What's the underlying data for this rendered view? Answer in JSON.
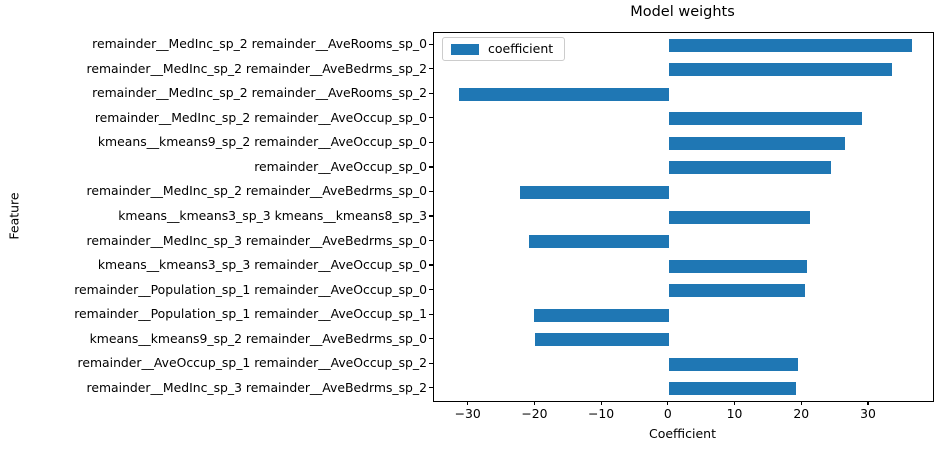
{
  "colors": {
    "bar": "#1f77b4",
    "spine": "#000000",
    "legend_border": "#cccccc",
    "background": "#ffffff"
  },
  "chart_data": {
    "type": "bar",
    "orientation": "horizontal",
    "title": "Model weights",
    "xlabel": "Coefficient",
    "ylabel": "Feature",
    "legend": [
      "coefficient"
    ],
    "legend_position": "upper left",
    "grid": false,
    "xlim": [
      -35.2,
      39.6
    ],
    "xticks": [
      -30,
      -20,
      -10,
      0,
      10,
      20,
      30
    ],
    "categories": [
      "remainder__MedInc_sp_2 remainder__AveRooms_sp_0",
      "remainder__MedInc_sp_2 remainder__AveBedrms_sp_2",
      "remainder__MedInc_sp_2 remainder__AveRooms_sp_2",
      "remainder__MedInc_sp_2 remainder__AveOccup_sp_0",
      "kmeans__kmeans9_sp_2 remainder__AveOccup_sp_0",
      "remainder__AveOccup_sp_0",
      "remainder__MedInc_sp_2 remainder__AveBedrms_sp_0",
      "kmeans__kmeans3_sp_3 kmeans__kmeans8_sp_3",
      "remainder__MedInc_sp_3 remainder__AveBedrms_sp_0",
      "kmeans__kmeans3_sp_3 remainder__AveOccup_sp_0",
      "remainder__Population_sp_1 remainder__AveOccup_sp_0",
      "remainder__Population_sp_1 remainder__AveOccup_sp_1",
      "kmeans__kmeans9_sp_2 remainder__AveBedrms_sp_0",
      "remainder__AveOccup_sp_1 remainder__AveOccup_sp_2",
      "remainder__MedInc_sp_3 remainder__AveBedrms_sp_2"
    ],
    "values": [
      36.4,
      33.4,
      -31.4,
      29.0,
      26.4,
      24.3,
      -22.3,
      21.2,
      -20.9,
      20.7,
      20.4,
      -20.2,
      -20.0,
      19.4,
      19.0
    ]
  }
}
